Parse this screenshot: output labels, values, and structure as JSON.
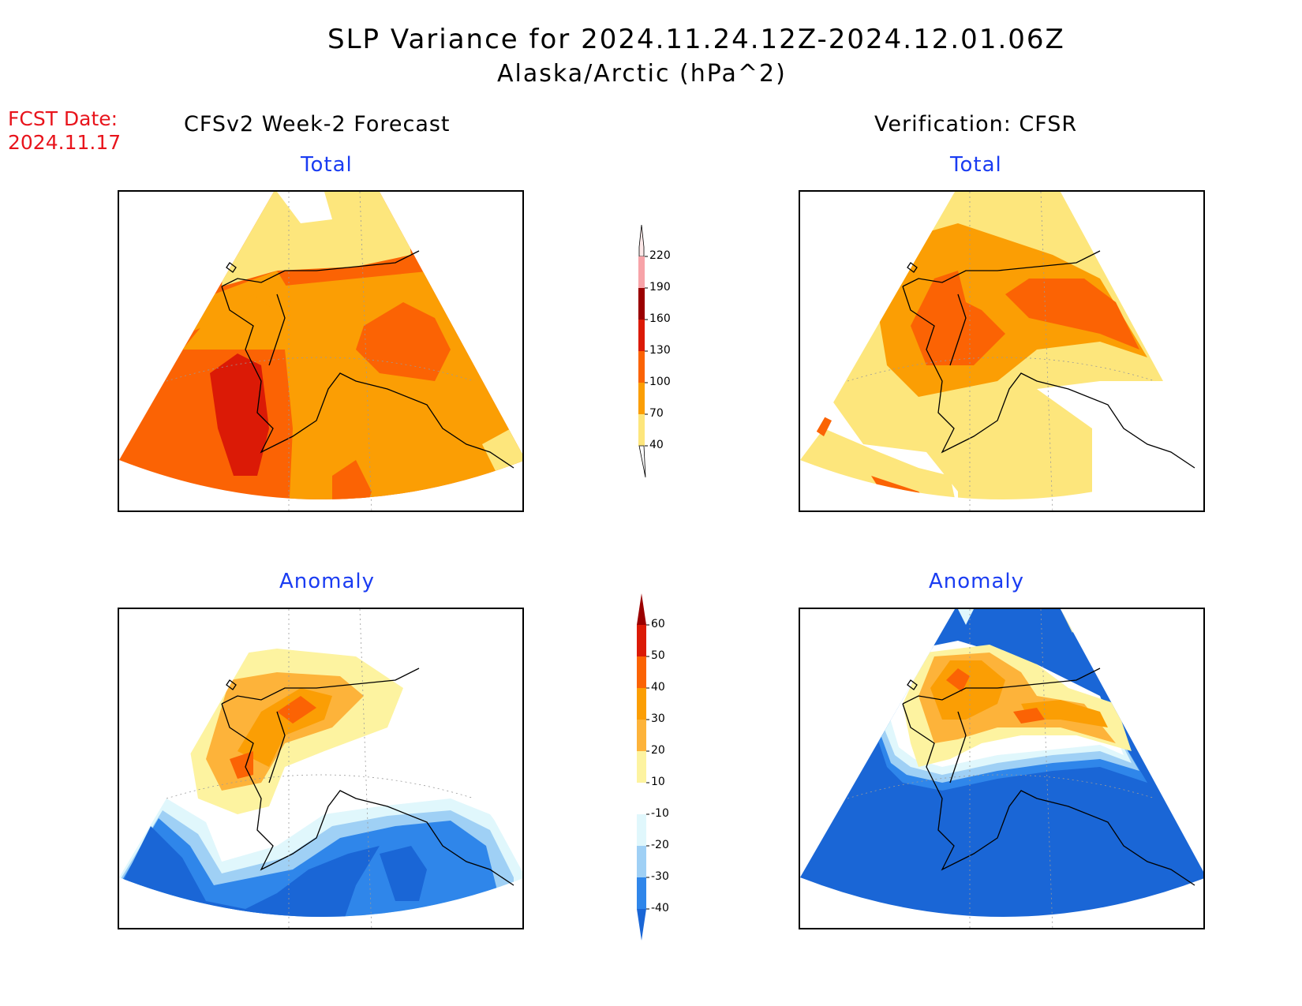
{
  "header": {
    "title": "SLP Variance for 2024.11.24.12Z-2024.12.01.06Z",
    "subtitle": "Alaska/Arctic (hPa^2)",
    "fcst_label": "FCST Date:",
    "fcst_date": "2024.11.17"
  },
  "columns": {
    "left_title": "CFSv2 Week-2 Forecast",
    "right_title": "Verification: CFSR"
  },
  "panels": {
    "top_left_label": "Total",
    "top_right_label": "Total",
    "bottom_left_label": "Anomaly",
    "bottom_right_label": "Anomaly"
  },
  "colorbar_total": {
    "labels": [
      "220",
      "190",
      "160",
      "130",
      "100",
      "70",
      "40"
    ],
    "colors": [
      "#f7a3a8",
      "#9b0000",
      "#db1a06",
      "#fb6304",
      "#fb9e04",
      "#fde67c"
    ]
  },
  "colorbar_anomaly": {
    "labels": [
      "60",
      "50",
      "40",
      "30",
      "20",
      "10",
      "-10",
      "-20",
      "-30",
      "-40"
    ],
    "colors": [
      "#db1a06",
      "#fb6304",
      "#fb9e04",
      "#fdb33a",
      "#fdf3a0",
      "#ffffff",
      "#e0f7fc",
      "#9fd0f5",
      "#2f86ea"
    ],
    "top_arrow_color": "#9b0000",
    "bottom_arrow_color": "#1a66d6"
  },
  "palette": {
    "yellow": "#fde67c",
    "light_yellow": "#fdf3a0",
    "orange": "#fb9e04",
    "light_orange": "#fdb33a",
    "dark_orange": "#fb6304",
    "red": "#db1a06",
    "light_cyan": "#e0f7fc",
    "light_blue": "#9fd0f5",
    "mid_blue": "#2f86ea",
    "deep_blue": "#1a66d6"
  }
}
